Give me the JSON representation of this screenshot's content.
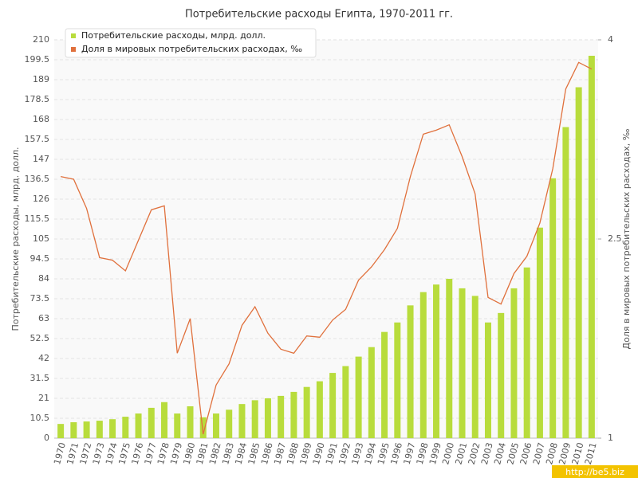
{
  "chart_data": {
    "type": "bar-line",
    "title": "Потребительские расходы Египта, 1970-2011 гг.",
    "y_label": "Потребительские расходы, млрд. долл.",
    "y2_label": "Доля в мировых потребительских расходах, ‰",
    "watermark": "http://be5.biz",
    "categories": [
      "1970",
      "1971",
      "1972",
      "1973",
      "1974",
      "1975",
      "1976",
      "1977",
      "1978",
      "1979",
      "1980",
      "1981",
      "1982",
      "1983",
      "1984",
      "1985",
      "1986",
      "1987",
      "1988",
      "1989",
      "1990",
      "1991",
      "1992",
      "1993",
      "1994",
      "1995",
      "1996",
      "1997",
      "1998",
      "1999",
      "2000",
      "2001",
      "2002",
      "2003",
      "2004",
      "2005",
      "2006",
      "2007",
      "2008",
      "2009",
      "2010",
      "2011"
    ],
    "series": [
      {
        "name": "Потребительские расходы, млрд. долл.",
        "type": "bar",
        "color": "#b8dc3c",
        "values": [
          7.5,
          8.4,
          8.8,
          9.2,
          10,
          11.3,
          13,
          16,
          19,
          13,
          16.8,
          11,
          13,
          15,
          18,
          20,
          21,
          22.3,
          24.4,
          27,
          30,
          34.4,
          38,
          43,
          48,
          56,
          61,
          70,
          77,
          81,
          84,
          79,
          75,
          61,
          66,
          79,
          90,
          111,
          137,
          164,
          185,
          201.6
        ]
      },
      {
        "name": "Доля в мировых потребительских расходах, ‰",
        "type": "line",
        "color": "#e0703c",
        "axis": "y2",
        "values": [
          2.97,
          2.95,
          2.73,
          2.36,
          2.34,
          2.26,
          2.49,
          2.72,
          2.75,
          1.64,
          1.9,
          1.03,
          1.4,
          1.56,
          1.85,
          1.99,
          1.79,
          1.67,
          1.64,
          1.77,
          1.76,
          1.89,
          1.97,
          2.19,
          2.29,
          2.42,
          2.58,
          2.97,
          3.29,
          3.32,
          3.36,
          3.12,
          2.84,
          2.06,
          2.01,
          2.24,
          2.37,
          2.62,
          3.03,
          3.63,
          3.83,
          3.78
        ]
      }
    ],
    "ylim": [
      0,
      210
    ],
    "yticks": [
      0,
      10.5,
      21,
      31.5,
      42,
      52.5,
      63,
      73.5,
      84,
      94.5,
      105,
      115.5,
      126,
      136.5,
      147,
      157.5,
      168,
      178.5,
      189,
      199.5,
      210
    ],
    "y2lim": [
      1,
      4
    ],
    "y2ticks": [
      1,
      2.5,
      4
    ],
    "grid": true,
    "legend": "top-left"
  }
}
